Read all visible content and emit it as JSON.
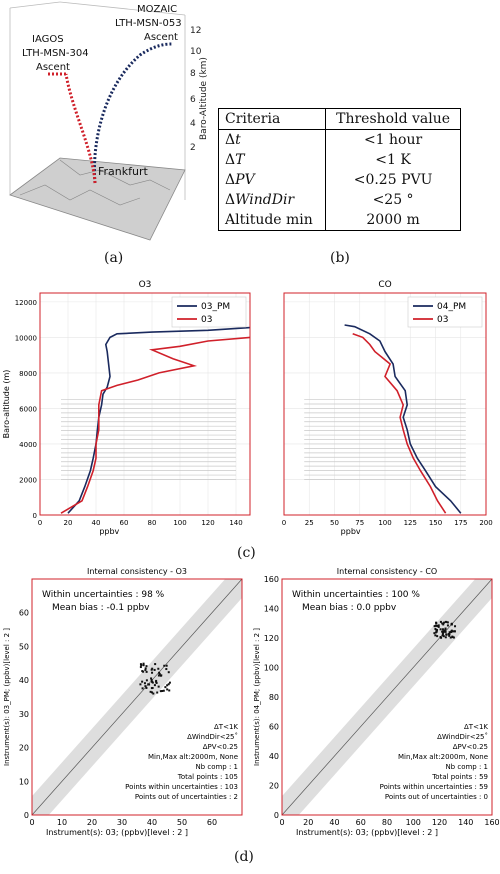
{
  "panel_a": {
    "label": "(a)",
    "mozaic_title": "MOZAIC",
    "mozaic_aircraft": "LTH-MSN-053",
    "mozaic_phase": "Ascent",
    "iagos_title": "IAGOS",
    "iagos_aircraft": "LTH-MSN-304",
    "iagos_phase": "Ascent",
    "airport": "Frankfurt",
    "axis_label": "Baro-Altitude (km)",
    "ticks": [
      "2",
      "4",
      "6",
      "8",
      "10",
      "12"
    ],
    "colors": {
      "mozaic": "#1a2a5e",
      "iagos": "#d0202a",
      "ground": "#cfcfcf"
    }
  },
  "panel_b": {
    "label": "(b)",
    "header": [
      "Criteria",
      "Threshold value"
    ],
    "rows": [
      {
        "criteria": "ΔT",
        "italic": "t",
        "value": "<1 hour"
      },
      {
        "criteria": "ΔT",
        "italic": "T",
        "value": "<1 K"
      },
      {
        "criteria": "ΔPV",
        "italic": "PV",
        "value": "<0.25 PVU"
      },
      {
        "criteria": "ΔWindDir",
        "italic": "WindDir",
        "value": "<25 °"
      },
      {
        "criteria": "Altitude min",
        "italic": "",
        "value": "2000 m"
      }
    ]
  },
  "panel_c": {
    "label": "(c)",
    "chart_data": [
      {
        "type": "line",
        "title": "O3",
        "xlabel": "ppbv",
        "ylabel": "Baro-altitude (m)",
        "xlim": [
          0,
          150
        ],
        "ylim": [
          0,
          12500
        ],
        "xticks": [
          "0",
          "20",
          "40",
          "60",
          "80",
          "100",
          "120",
          "140"
        ],
        "yticks": [
          "0",
          "2000",
          "4000",
          "6000",
          "8000",
          "10000",
          "12000"
        ],
        "legend": "top-right",
        "series": [
          {
            "name": "03_PM",
            "color": "#1a2a5e",
            "points": [
              [
                20,
                100
              ],
              [
                28,
                800
              ],
              [
                32,
                1600
              ],
              [
                36,
                2500
              ],
              [
                38,
                3200
              ],
              [
                40,
                4000
              ],
              [
                41,
                4800
              ],
              [
                42,
                5500
              ],
              [
                44,
                6200
              ],
              [
                45,
                6800
              ],
              [
                48,
                7200
              ],
              [
                50,
                7800
              ],
              [
                49,
                8500
              ],
              [
                48,
                9200
              ],
              [
                47,
                9600
              ],
              [
                50,
                10000
              ],
              [
                55,
                10200
              ],
              [
                80,
                10300
              ],
              [
                120,
                10400
              ],
              [
                150,
                10550
              ]
            ]
          },
          {
            "name": "03",
            "color": "#d0202a",
            "points": [
              [
                15,
                100
              ],
              [
                30,
                800
              ],
              [
                34,
                1600
              ],
              [
                38,
                2500
              ],
              [
                40,
                3200
              ],
              [
                40,
                4000
              ],
              [
                42,
                4800
              ],
              [
                42,
                5500
              ],
              [
                42,
                6200
              ],
              [
                44,
                7000
              ],
              [
                55,
                7300
              ],
              [
                70,
                7600
              ],
              [
                85,
                8000
              ],
              [
                110,
                8400
              ],
              [
                95,
                8800
              ],
              [
                80,
                9300
              ],
              [
                100,
                9500
              ],
              [
                120,
                9800
              ],
              [
                150,
                10000
              ]
            ]
          }
        ],
        "band": {
          "x": [
            15,
            140
          ],
          "y": [
            2000,
            6700
          ]
        }
      },
      {
        "type": "line",
        "title": "CO",
        "xlabel": "ppbv",
        "ylabel": "",
        "xlim": [
          0,
          200
        ],
        "ylim": [
          0,
          12500
        ],
        "xticks": [
          "0",
          "25",
          "50",
          "75",
          "100",
          "125",
          "150",
          "175",
          "200"
        ],
        "yticks": [],
        "legend": "top-right",
        "series": [
          {
            "name": "04_PM",
            "color": "#1a2a5e",
            "points": [
              [
                175,
                100
              ],
              [
                165,
                800
              ],
              [
                150,
                1600
              ],
              [
                140,
                2500
              ],
              [
                132,
                3200
              ],
              [
                125,
                4000
              ],
              [
                122,
                4800
              ],
              [
                118,
                5500
              ],
              [
                122,
                6200
              ],
              [
                120,
                7000
              ],
              [
                110,
                7800
              ],
              [
                108,
                8500
              ],
              [
                100,
                9200
              ],
              [
                95,
                9800
              ],
              [
                85,
                10200
              ],
              [
                70,
                10600
              ],
              [
                60,
                10700
              ]
            ]
          },
          {
            "name": "03",
            "color": "#d0202a",
            "points": [
              [
                160,
                100
              ],
              [
                152,
                800
              ],
              [
                145,
                1600
              ],
              [
                135,
                2500
              ],
              [
                128,
                3200
              ],
              [
                122,
                4000
              ],
              [
                118,
                4800
              ],
              [
                115,
                5500
              ],
              [
                118,
                6200
              ],
              [
                112,
                7000
              ],
              [
                100,
                7800
              ],
              [
                105,
                8500
              ],
              [
                90,
                9200
              ],
              [
                85,
                9600
              ],
              [
                78,
                10000
              ],
              [
                68,
                10200
              ]
            ]
          }
        ],
        "band": {
          "x": [
            20,
            180
          ],
          "y": [
            2000,
            6700
          ]
        }
      }
    ]
  },
  "panel_d": {
    "label": "(d)",
    "chart_data": [
      {
        "type": "scatter",
        "title": "Internal consistency - O3",
        "xlabel": "Instrument(s): 03; (ppbv)[level : 2 ]",
        "ylabel": "Instrument(s): 03_PM; (ppbv)[level : 2 ]",
        "xlim": [
          0,
          70
        ],
        "ylim": [
          0,
          70
        ],
        "xticks": [
          "0",
          "10",
          "20",
          "30",
          "40",
          "50",
          "60"
        ],
        "yticks": [
          "0",
          "10",
          "20",
          "30",
          "40",
          "50",
          "60"
        ],
        "stats": [
          "Within uncertainties : 98 %",
          "Mean bias : -0.1 ppbv"
        ],
        "notes": [
          "ΔT<1K",
          "ΔWindDir<25˚",
          "ΔPV<0.25",
          "Min,Max alt:2000m, None",
          "Nb comp : 1",
          "Total points : 105",
          "Points within uncertainties : 103",
          "Points out of uncertainties : 2"
        ],
        "cluster": {
          "x": [
            36,
            46
          ],
          "y": [
            36,
            45
          ]
        }
      },
      {
        "type": "scatter",
        "title": "Internal consistency - CO",
        "xlabel": "Instrument(s): 03; (ppbv)[level : 2 ]",
        "ylabel": "Instrument(s): 04_PM; (ppbv)[level : 2 ]",
        "xlim": [
          0,
          160
        ],
        "ylim": [
          0,
          160
        ],
        "xticks": [
          "0",
          "20",
          "40",
          "60",
          "80",
          "100",
          "120",
          "140",
          "160"
        ],
        "yticks": [
          "0",
          "20",
          "40",
          "60",
          "80",
          "100",
          "120",
          "140",
          "160"
        ],
        "stats": [
          "Within uncertainties : 100 %",
          "Mean bias :  0.0 ppbv"
        ],
        "notes": [
          "ΔT<1K",
          "ΔWindDir<25˚",
          "ΔPV<0.25",
          "Min,Max alt:2000m, None",
          "Nb comp : 1",
          "Total points : 59",
          "Points within uncertainties : 59",
          "Points out of uncertainties : 0"
        ],
        "cluster": {
          "x": [
            116,
            132
          ],
          "y": [
            120,
            131
          ]
        }
      }
    ]
  }
}
